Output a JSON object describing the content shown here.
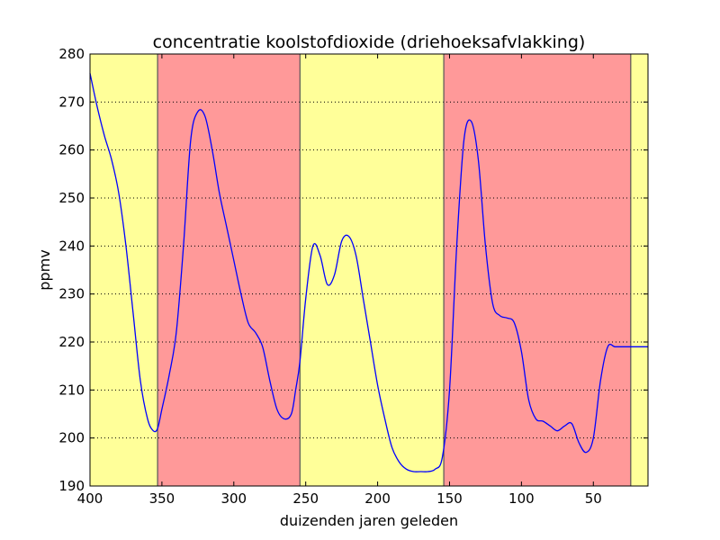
{
  "chart_data": {
    "type": "line",
    "title": "concentratie koolstofdioxide (driehoeksafvlakking)",
    "xlabel": "duizenden jaren geleden",
    "ylabel": "ppmv",
    "xlim": [
      400,
      12
    ],
    "ylim": [
      190,
      280
    ],
    "x_ticks": [
      400,
      350,
      300,
      250,
      200,
      150,
      100,
      50
    ],
    "x_tick_labels": [
      "400",
      "350",
      "300",
      "250",
      "200",
      "150",
      "100",
      "50"
    ],
    "y_ticks": [
      190,
      200,
      210,
      220,
      230,
      240,
      250,
      260,
      270,
      280
    ],
    "y_tick_labels": [
      "190",
      "200",
      "210",
      "220",
      "230",
      "240",
      "250",
      "260",
      "270",
      "280"
    ],
    "grid": "horizontal dotted",
    "legend": "none",
    "background_bands": [
      {
        "from": 400,
        "to": 353,
        "color": "#ffff99"
      },
      {
        "from": 353,
        "to": 254,
        "color": "#ff9999"
      },
      {
        "from": 254,
        "to": 154,
        "color": "#ffff99"
      },
      {
        "from": 154,
        "to": 24,
        "color": "#ff9999"
      },
      {
        "from": 24,
        "to": 12,
        "color": "#ffff99"
      }
    ],
    "band_boundaries": [
      353,
      254,
      154,
      24
    ],
    "series": [
      {
        "color": "#0000ff",
        "x": [
          400,
          395,
          390,
          385,
          380,
          375,
          370,
          365,
          360,
          356,
          353,
          350,
          345,
          340,
          335,
          330,
          325,
          320,
          315,
          310,
          305,
          300,
          295,
          290,
          285,
          280,
          275,
          270,
          265,
          260,
          257,
          254,
          250,
          245,
          240,
          235,
          230,
          225,
          220,
          215,
          210,
          205,
          200,
          195,
          190,
          185,
          180,
          175,
          170,
          165,
          160,
          155,
          150,
          145,
          140,
          135,
          130,
          125,
          120,
          115,
          110,
          105,
          100,
          95,
          90,
          85,
          80,
          75,
          70,
          65,
          60,
          55,
          50,
          45,
          40,
          35,
          30,
          25,
          22,
          18,
          15,
          12
        ],
        "y": [
          276,
          269,
          263,
          258,
          251,
          240,
          226,
          212,
          204,
          201.5,
          202,
          206,
          213,
          222,
          240,
          262,
          268,
          267,
          260,
          251,
          244,
          237,
          230,
          224,
          222,
          219,
          212,
          206,
          204,
          205,
          210,
          216,
          229,
          240,
          238,
          232,
          234,
          241,
          242,
          238,
          229,
          220,
          211,
          204,
          198,
          195,
          193.5,
          193,
          193,
          193,
          193.5,
          196,
          210,
          240,
          262,
          266,
          258,
          240,
          228,
          225.5,
          225,
          224,
          218,
          208,
          204,
          203.5,
          202.5,
          201.5,
          202.5,
          203,
          199,
          197,
          200,
          212,
          219,
          219,
          219,
          219,
          219,
          219,
          219,
          219
        ],
        "values_note": ""
      }
    ]
  }
}
